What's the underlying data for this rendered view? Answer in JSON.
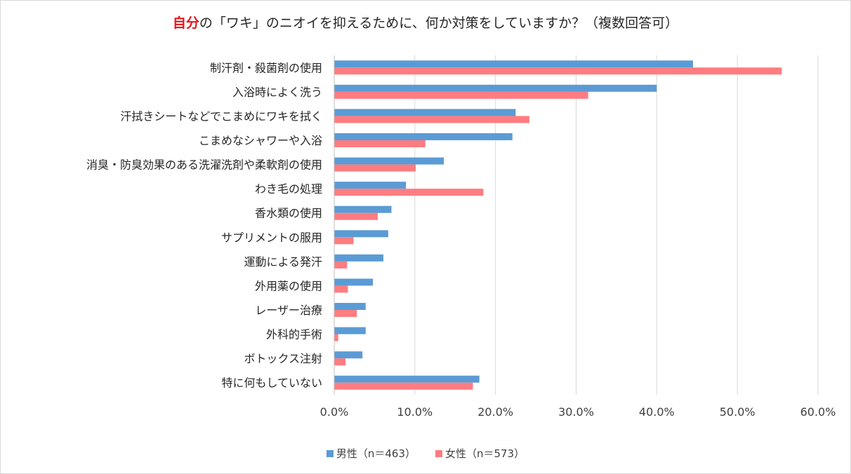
{
  "title": {
    "accent": "自分",
    "rest": "の「ワキ」のニオイを抑えるために、何か対策をしていますか？（複数回答可）"
  },
  "colors": {
    "male": "#5b9bd5",
    "female": "#ff7c80",
    "grid": "#d9d9d9"
  },
  "chart_data": {
    "type": "bar",
    "orientation": "horizontal",
    "categories": [
      "制汗剤・殺菌剤の使用",
      "入浴時によく洗う",
      "汗拭きシートなどでこまめにワキを拭く",
      "こまめなシャワーや入浴",
      "消臭・防臭効果のある洗濯洗剤や柔軟剤の使用",
      "わき毛の処理",
      "香水類の使用",
      "サプリメントの服用",
      "運動による発汗",
      "外用薬の使用",
      "レーザー治療",
      "外科的手術",
      "ボトックス注射",
      "特に何もしていない"
    ],
    "series": [
      {
        "name": "男性（n＝463）",
        "values": [
          44.5,
          40.0,
          22.5,
          22.1,
          13.6,
          8.9,
          7.1,
          6.7,
          6.1,
          4.8,
          3.9,
          3.9,
          3.5,
          18.0
        ]
      },
      {
        "name": "女性（n＝573）",
        "values": [
          55.5,
          31.5,
          24.2,
          11.3,
          10.1,
          18.5,
          5.4,
          2.4,
          1.6,
          1.7,
          2.8,
          0.5,
          1.4,
          17.2
        ]
      }
    ],
    "xlim": [
      0,
      60
    ],
    "xticks": [
      "0.0%",
      "10.0%",
      "20.0%",
      "30.0%",
      "40.0%",
      "50.0%",
      "60.0%"
    ],
    "grid": true,
    "legend": "bottom"
  }
}
